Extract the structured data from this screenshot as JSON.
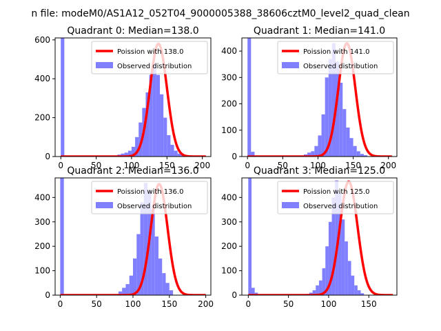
{
  "figure_title": "n file: modeM0/AS1A12_052T04_9000005388_38606cztM0_level2_quad_clean",
  "colors": {
    "hist": "#7f7fff",
    "poisson": "#ff0000",
    "axis": "#000000",
    "background": "#ffffff"
  },
  "chart_data": [
    {
      "type": "histogram",
      "title": "Quadrant 0: Median=138.0",
      "median": 138.0,
      "xlim": [
        -8,
        212
      ],
      "ylim": [
        0,
        610
      ],
      "xticks": [
        0,
        50,
        100,
        150,
        200
      ],
      "yticks": [
        0,
        200,
        400,
        600
      ],
      "legend": {
        "placement": "top-right",
        "line_label": "Poission with 138.0",
        "hist_label": "Observed distribution"
      },
      "bin_edges_start": 0,
      "bin_width": 5,
      "counts": [
        610,
        0,
        0,
        0,
        0,
        0,
        0,
        0,
        0,
        0,
        0,
        0,
        0,
        0,
        0,
        0,
        10,
        15,
        20,
        30,
        50,
        100,
        175,
        250,
        330,
        420,
        480,
        420,
        320,
        200,
        110,
        60,
        30,
        15,
        8,
        5,
        0
      ],
      "poisson": {
        "mu": 138.0,
        "peak": 580,
        "sigma": 12,
        "x_range": [
          0,
          205
        ]
      }
    },
    {
      "type": "histogram",
      "title": "Quadrant 1: Median=141.0",
      "median": 141.0,
      "xlim": [
        -8,
        212
      ],
      "ylim": [
        0,
        450
      ],
      "xticks": [
        0,
        50,
        100,
        150,
        200
      ],
      "yticks": [
        0,
        100,
        200,
        300,
        400
      ],
      "legend": {
        "placement": "top-right",
        "line_label": "Poission with 141.0",
        "hist_label": "Observed distribution"
      },
      "bin_edges_start": 0,
      "bin_width": 5,
      "counts": [
        450,
        18,
        0,
        0,
        0,
        0,
        0,
        0,
        0,
        0,
        0,
        0,
        0,
        0,
        0,
        0,
        8,
        15,
        20,
        40,
        80,
        160,
        300,
        370,
        430,
        360,
        280,
        180,
        110,
        70,
        40,
        20,
        10,
        5,
        0,
        0,
        0
      ],
      "poisson": {
        "mu": 141.0,
        "peak": 430,
        "sigma": 12,
        "x_range": [
          0,
          205
        ]
      }
    },
    {
      "type": "histogram",
      "title": "Quadrant 2: Median=136.0",
      "median": 136.0,
      "xlim": [
        -7,
        207
      ],
      "ylim": [
        0,
        480
      ],
      "xticks": [
        0,
        50,
        100,
        150,
        200
      ],
      "yticks": [
        0,
        100,
        200,
        300,
        400
      ],
      "legend": {
        "placement": "top-right",
        "line_label": "Poission with 136.0",
        "hist_label": "Observed distribution"
      },
      "bin_edges_start": 0,
      "bin_width": 5,
      "counts": [
        480,
        0,
        0,
        0,
        0,
        0,
        0,
        0,
        0,
        0,
        0,
        0,
        0,
        0,
        0,
        0,
        15,
        30,
        45,
        80,
        150,
        250,
        380,
        460,
        430,
        350,
        240,
        150,
        90,
        50,
        20,
        0,
        0,
        0,
        0,
        0,
        0
      ],
      "poisson": {
        "mu": 136.0,
        "peak": 455,
        "sigma": 11.5,
        "x_range": [
          0,
          200
        ]
      }
    },
    {
      "type": "histogram",
      "title": "Quadrant 3: Median=125.0",
      "median": 125.0,
      "xlim": [
        -8,
        185
      ],
      "ylim": [
        0,
        480
      ],
      "xticks": [
        0,
        50,
        100,
        150
      ],
      "yticks": [
        0,
        100,
        200,
        300,
        400
      ],
      "legend": {
        "placement": "top-right",
        "line_label": "Poission with 125.0",
        "hist_label": "Observed distribution"
      },
      "bin_edges_start": 0,
      "bin_width": 4,
      "counts": [
        480,
        30,
        10,
        0,
        0,
        0,
        0,
        0,
        0,
        0,
        0,
        0,
        0,
        0,
        0,
        0,
        0,
        0,
        5,
        10,
        20,
        40,
        60,
        110,
        200,
        300,
        400,
        470,
        420,
        310,
        220,
        140,
        80,
        40,
        20,
        8,
        0
      ],
      "poisson": {
        "mu": 125.0,
        "peak": 465,
        "sigma": 11,
        "x_range": [
          0,
          180
        ]
      }
    }
  ]
}
